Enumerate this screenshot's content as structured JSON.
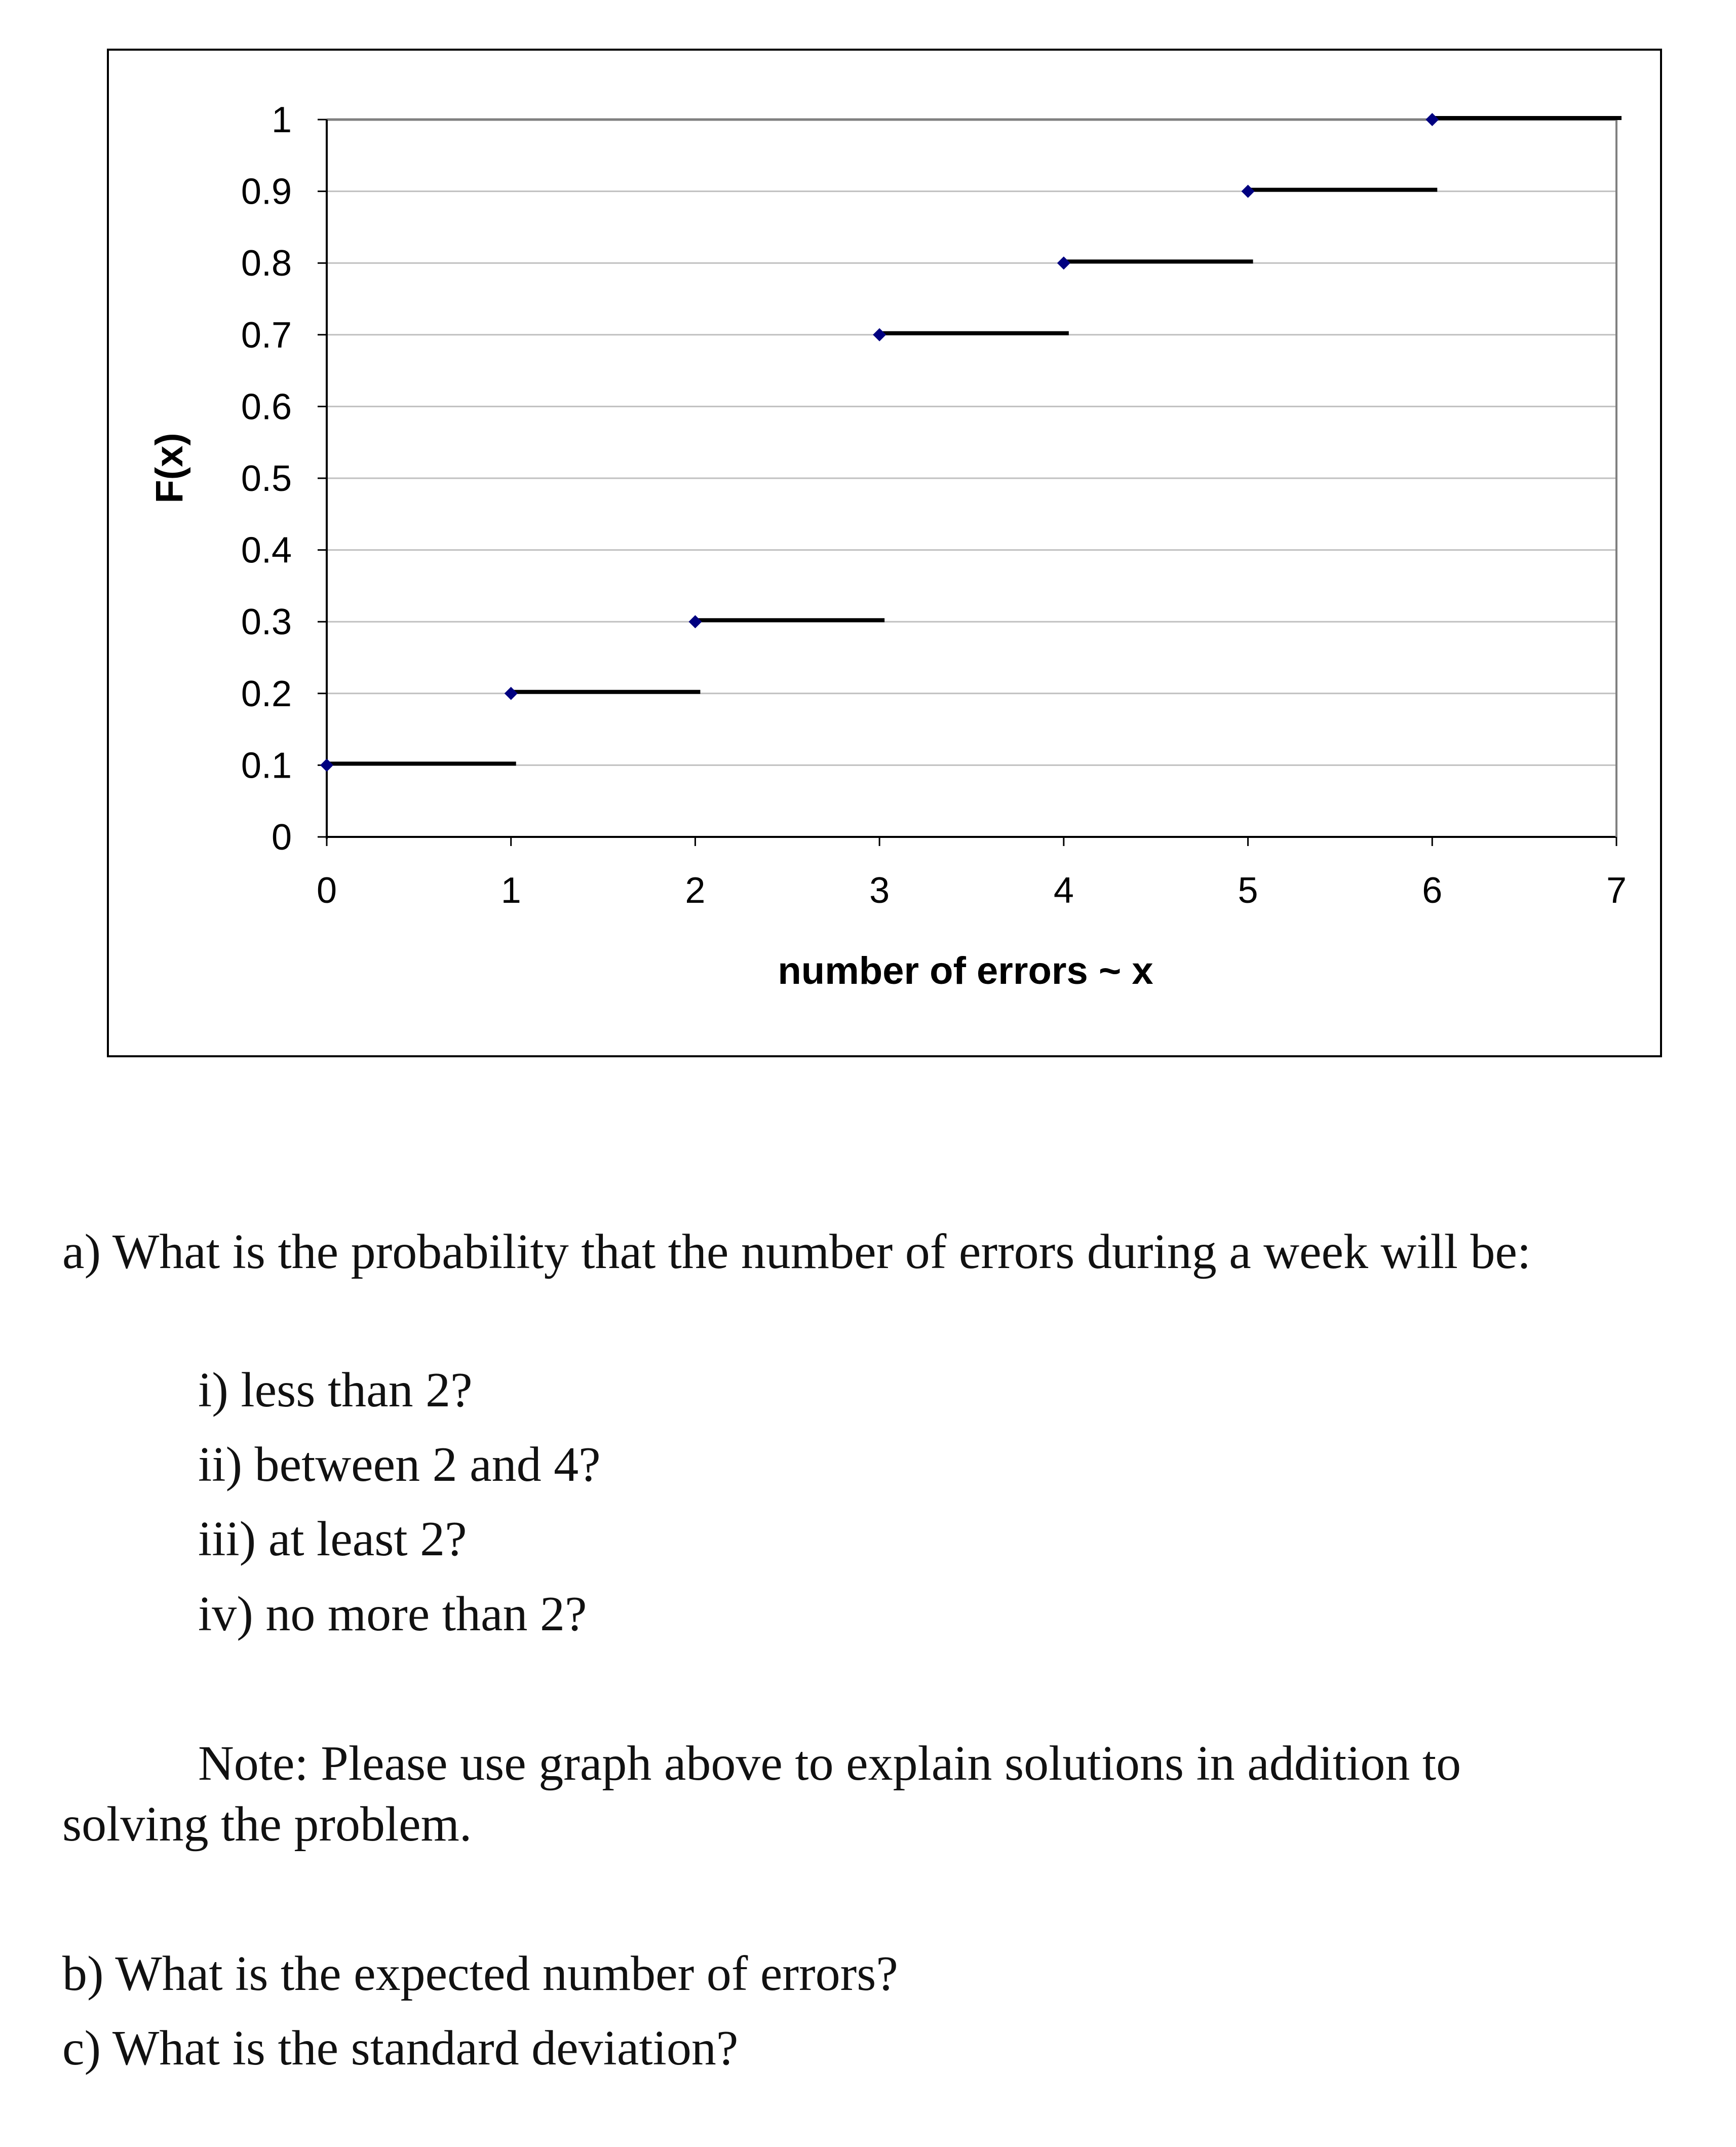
{
  "chart_data": {
    "type": "step",
    "title": "",
    "xlabel": "number of errors ~ x",
    "ylabel": "F(x)",
    "xlim": [
      0,
      7
    ],
    "ylim": [
      0,
      1
    ],
    "x_ticks": [
      "0",
      "1",
      "2",
      "3",
      "4",
      "5",
      "6",
      "7"
    ],
    "y_ticks": [
      "0",
      "0.1",
      "0.2",
      "0.3",
      "0.4",
      "0.5",
      "0.6",
      "0.7",
      "0.8",
      "0.9",
      "1"
    ],
    "grid": "horizontal",
    "points": [
      {
        "x": 0,
        "y": 0.1
      },
      {
        "x": 1,
        "y": 0.2
      },
      {
        "x": 2,
        "y": 0.3
      },
      {
        "x": 3,
        "y": 0.7
      },
      {
        "x": 4,
        "y": 0.8
      },
      {
        "x": 5,
        "y": 0.9
      },
      {
        "x": 6,
        "y": 1.0
      }
    ],
    "step_end_x": 7,
    "colors": {
      "marker": "#000080",
      "step": "#000000",
      "grid": "#c0c0c0"
    }
  },
  "questions": {
    "a": "a) What is the probability that the number of errors during a week will be:",
    "a_parts": [
      "i) less than 2?",
      "ii) between 2 and 4?",
      "iii) at least 2?",
      "iv) no more than 2?"
    ],
    "note": "Note: Please use graph above to explain solutions in addition to",
    "note_cont": "solving the problem.",
    "b": "b) What is the expected number of errors?",
    "c": "c) What is the standard deviation?"
  }
}
